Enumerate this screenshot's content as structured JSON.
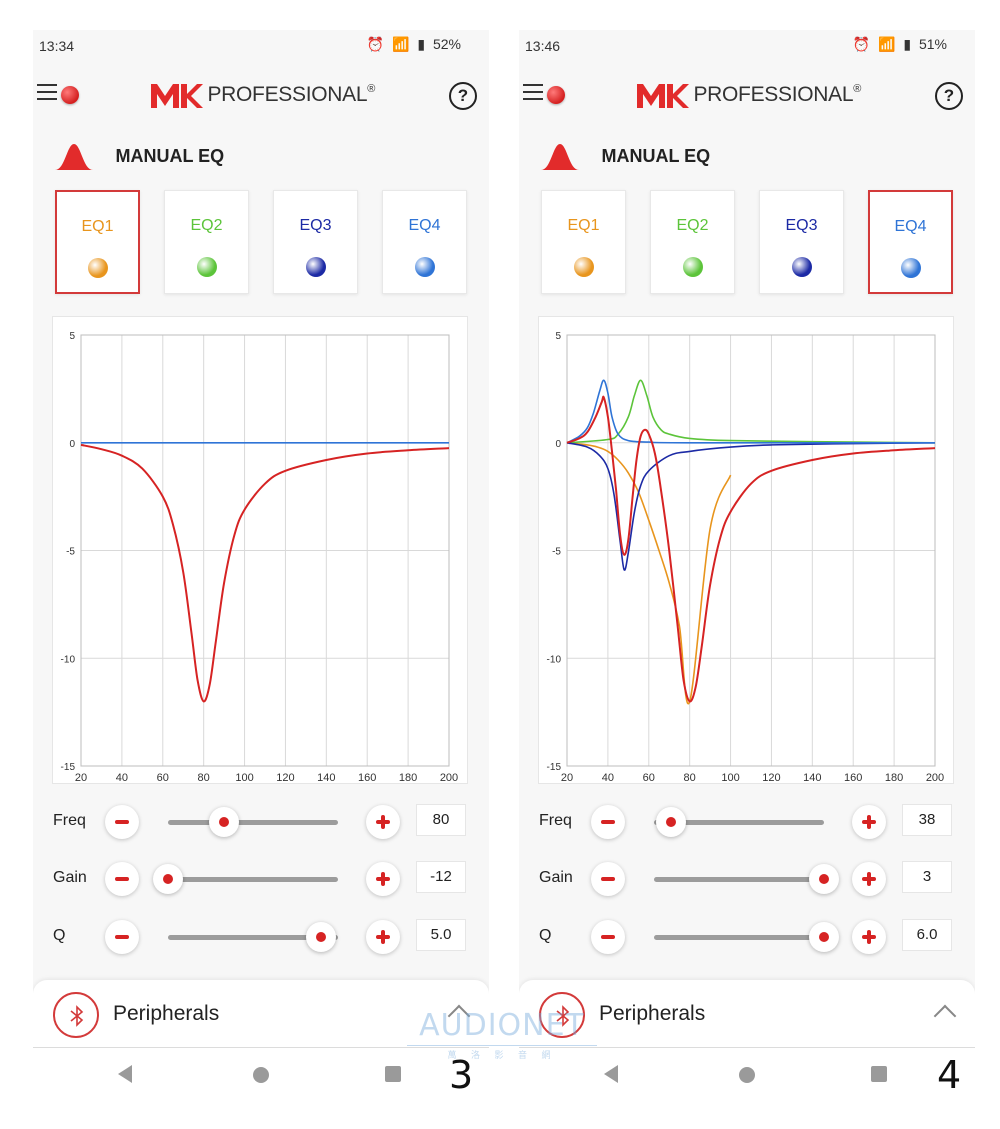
{
  "panels": [
    {
      "status_time": "13:34",
      "battery": "52%",
      "brand_text": "PROFESSIONAL",
      "brand_reg": "®",
      "help_glyph": "?",
      "section_title": "MANUAL EQ",
      "selected_tab": 0,
      "tabs": [
        {
          "label": "EQ1",
          "color": "#e8951d"
        },
        {
          "label": "EQ2",
          "color": "#5cc43a"
        },
        {
          "label": "EQ3",
          "color": "#1c2aa5"
        },
        {
          "label": "EQ4",
          "color": "#2f74d6"
        }
      ],
      "controls": {
        "freq_label": "Freq",
        "freq_value": "80",
        "freq_level": 0.33,
        "gain_label": "Gain",
        "gain_value": "-12",
        "gain_level": 0.0,
        "q_label": "Q",
        "q_value": "5.0",
        "q_level": 0.9
      },
      "peripherals_label": "Peripherals",
      "page_number": "3",
      "chart_data": {
        "type": "line",
        "x_ticks": [
          "20",
          "40",
          "60",
          "80",
          "100",
          "120",
          "140",
          "160",
          "180",
          "200"
        ],
        "y_ticks": [
          "5",
          "0",
          "-5",
          "-10",
          "-15"
        ],
        "xlim": [
          20,
          200
        ],
        "ylim": [
          -15,
          5
        ],
        "grid": true,
        "series": [
          {
            "color": "#2f74d6",
            "x": [
              20,
              200
            ],
            "y": [
              0,
              0
            ]
          },
          {
            "color": "#d62323",
            "x": [
              20,
              30,
              40,
              50,
              60,
              65,
              70,
              74,
              77,
              80,
              83,
              86,
              90,
              95,
              100,
              110,
              120,
              140,
              160,
              180,
              200
            ],
            "y": [
              -0.1,
              -0.3,
              -0.6,
              -1.2,
              -2.5,
              -3.8,
              -6.0,
              -8.8,
              -11.0,
              -12.0,
              -11.2,
              -9.2,
              -6.5,
              -4.3,
              -3.1,
              -1.9,
              -1.3,
              -0.8,
              -0.5,
              -0.35,
              -0.25
            ]
          }
        ]
      }
    },
    {
      "status_time": "13:46",
      "battery": "51%",
      "brand_text": "PROFESSIONAL",
      "brand_reg": "®",
      "help_glyph": "?",
      "section_title": "MANUAL EQ",
      "selected_tab": 3,
      "tabs": [
        {
          "label": "EQ1",
          "color": "#e8951d"
        },
        {
          "label": "EQ2",
          "color": "#5cc43a"
        },
        {
          "label": "EQ3",
          "color": "#1c2aa5"
        },
        {
          "label": "EQ4",
          "color": "#2f74d6"
        }
      ],
      "controls": {
        "freq_label": "Freq",
        "freq_value": "38",
        "freq_level": 0.1,
        "gain_label": "Gain",
        "gain_value": "3",
        "gain_level": 1.0,
        "q_label": "Q",
        "q_value": "6.0",
        "q_level": 1.0
      },
      "peripherals_label": "Peripherals",
      "page_number": "4",
      "chart_data": {
        "type": "line",
        "x_ticks": [
          "20",
          "40",
          "60",
          "80",
          "100",
          "120",
          "140",
          "160",
          "180",
          "200"
        ],
        "y_ticks": [
          "5",
          "0",
          "-5",
          "-10",
          "-15"
        ],
        "xlim": [
          20,
          200
        ],
        "ylim": [
          -15,
          5
        ],
        "grid": true,
        "series": [
          {
            "color": "#e8951d",
            "x": [
              20,
              30,
              35,
              40,
              45,
              50,
              55,
              60,
              65,
              70,
              75,
              80,
              90,
              100
            ],
            "y": [
              0,
              -0.1,
              -0.2,
              -0.4,
              -0.8,
              -1.4,
              -2.3,
              -3.6,
              -5.0,
              -6.5,
              -8.5,
              -12.0,
              -4.0,
              -1.5
            ]
          },
          {
            "color": "#5cc43a",
            "x": [
              20,
              40,
              45,
              50,
              53,
              56,
              59,
              62,
              66,
              70,
              80,
              100,
              140,
              200
            ],
            "y": [
              0,
              0.15,
              0.4,
              1.2,
              2.2,
              2.9,
              2.2,
              1.2,
              0.6,
              0.4,
              0.2,
              0.1,
              0.05,
              0
            ]
          },
          {
            "color": "#1c2aa5",
            "x": [
              20,
              30,
              36,
              40,
              43,
              46,
              48,
              50,
              53,
              56,
              60,
              70,
              80,
              100,
              120,
              150,
              200
            ],
            "y": [
              0,
              -0.2,
              -0.6,
              -1.2,
              -2.4,
              -4.6,
              -5.9,
              -5.1,
              -3.2,
              -2.0,
              -1.3,
              -0.6,
              -0.4,
              -0.2,
              -0.1,
              -0.05,
              0
            ]
          },
          {
            "color": "#2f74d6",
            "x": [
              20,
              26,
              30,
              33,
              36,
              38,
              40,
              42,
              45,
              50,
              60,
              80,
              200
            ],
            "y": [
              0,
              0.3,
              0.7,
              1.4,
              2.4,
              2.9,
              2.3,
              1.2,
              0.4,
              0.1,
              0.03,
              0,
              0
            ]
          },
          {
            "color": "#d62323",
            "x": [
              20,
              26,
              30,
              34,
              37,
              38,
              40,
              42,
              44,
              46,
              48,
              50,
              52,
              54,
              56,
              58,
              60,
              63,
              66,
              70,
              74,
              77,
              80,
              83,
              86,
              90,
              95,
              100,
              110,
              120,
              140,
              160,
              180,
              200
            ],
            "y": [
              0,
              0.2,
              0.5,
              1.2,
              1.9,
              2.1,
              1.2,
              -0.4,
              -2.2,
              -4.3,
              -5.2,
              -4.5,
              -2.6,
              -0.8,
              0.3,
              0.6,
              0.4,
              -0.5,
              -2.2,
              -5.0,
              -8.4,
              -11.0,
              -12.0,
              -11.3,
              -9.4,
              -6.6,
              -4.4,
              -3.2,
              -1.9,
              -1.3,
              -0.8,
              -0.5,
              -0.35,
              -0.25
            ]
          }
        ]
      }
    }
  ],
  "watermark": {
    "main": "AUDIONET",
    "sub": "萬 洛 影 音 網"
  }
}
